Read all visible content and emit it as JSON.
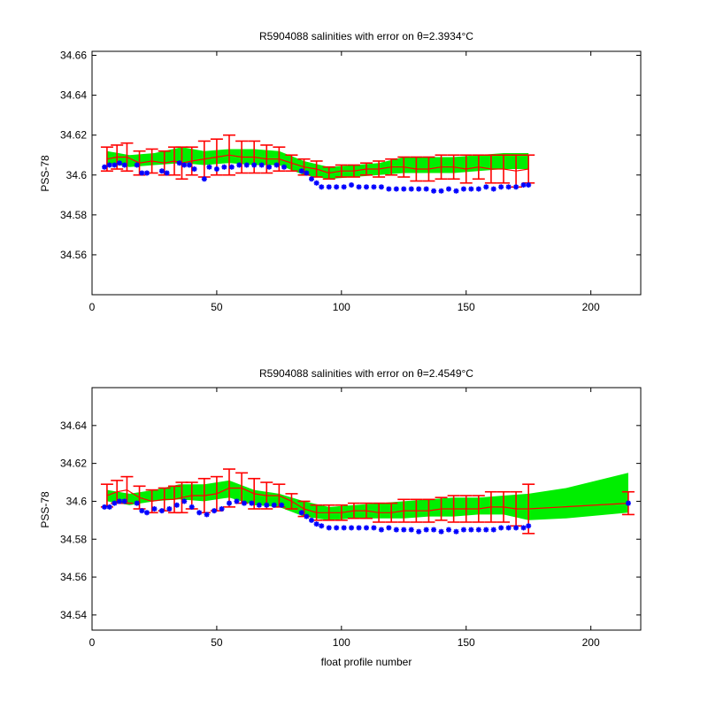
{
  "figure": {
    "background": "#ffffff",
    "colors": {
      "band": "#00ee00",
      "errorbar": "#ff0000",
      "points": "#0000ff",
      "axes": "#000000"
    }
  },
  "chart_data": [
    {
      "type": "scatter",
      "title": "R5904088 salinities with error on θ=2.3934°C",
      "xlabel": "",
      "ylabel": "PSS-78",
      "xlim": [
        0,
        220
      ],
      "ylim": [
        34.54,
        34.662
      ],
      "xticks": [
        0,
        50,
        100,
        150,
        200
      ],
      "xtick_labels": [
        "0",
        "50",
        "100",
        "150",
        "200"
      ],
      "yticks": [
        34.56,
        34.58,
        34.6,
        34.62,
        34.64,
        34.66
      ],
      "ytick_labels": [
        "34.56",
        "34.58",
        "34.6",
        "34.62",
        "34.64",
        "34.66"
      ],
      "grid": false,
      "legend": "none",
      "band": {
        "x": [
          6,
          15,
          25,
          36,
          45,
          55,
          65,
          75,
          85,
          95,
          105,
          115,
          125,
          135,
          145,
          155,
          165,
          175
        ],
        "upper": [
          34.612,
          34.61,
          34.611,
          34.614,
          34.612,
          34.613,
          34.613,
          34.612,
          34.607,
          34.604,
          34.605,
          34.606,
          34.609,
          34.609,
          34.609,
          34.61,
          34.611,
          34.611
        ],
        "lower": [
          34.606,
          34.604,
          34.605,
          34.606,
          34.605,
          34.606,
          34.605,
          34.605,
          34.6,
          34.598,
          34.599,
          34.6,
          34.601,
          34.601,
          34.601,
          34.602,
          34.603,
          34.603
        ]
      },
      "error_bars": {
        "x": [
          6,
          10,
          14,
          19,
          24,
          29,
          33,
          36,
          40,
          45,
          50,
          55,
          60,
          65,
          70,
          75,
          80,
          85,
          90,
          95,
          100,
          105,
          110,
          115,
          120,
          125,
          130,
          135,
          140,
          145,
          150,
          155,
          160,
          165,
          170,
          175
        ],
        "y": [
          34.608,
          34.609,
          34.609,
          34.606,
          34.607,
          34.606,
          34.607,
          34.606,
          34.607,
          34.608,
          34.609,
          34.61,
          34.609,
          34.609,
          34.608,
          34.608,
          34.606,
          34.604,
          34.603,
          34.601,
          34.602,
          34.602,
          34.603,
          34.603,
          34.604,
          34.604,
          34.603,
          34.603,
          34.604,
          34.604,
          34.603,
          34.604,
          34.603,
          34.603,
          34.602,
          34.603
        ],
        "err": [
          0.006,
          0.006,
          0.007,
          0.006,
          0.006,
          0.006,
          0.007,
          0.008,
          0.007,
          0.009,
          0.009,
          0.01,
          0.008,
          0.008,
          0.007,
          0.006,
          0.004,
          0.004,
          0.004,
          0.003,
          0.003,
          0.003,
          0.003,
          0.004,
          0.004,
          0.005,
          0.006,
          0.006,
          0.006,
          0.006,
          0.007,
          0.006,
          0.007,
          0.007,
          0.008,
          0.007
        ]
      },
      "points": {
        "x": [
          5,
          7,
          9,
          11,
          13,
          18,
          20,
          22,
          28,
          30,
          35,
          37,
          39,
          41,
          45,
          47,
          50,
          53,
          56,
          59,
          62,
          65,
          68,
          71,
          74,
          77,
          84,
          86,
          88,
          90,
          92,
          95,
          98,
          101,
          104,
          107,
          110,
          113,
          116,
          119,
          122,
          125,
          128,
          131,
          134,
          137,
          140,
          143,
          146,
          149,
          152,
          155,
          158,
          161,
          164,
          167,
          170,
          173,
          175
        ],
        "y": [
          34.604,
          34.605,
          34.605,
          34.606,
          34.605,
          34.605,
          34.601,
          34.601,
          34.602,
          34.601,
          34.606,
          34.605,
          34.605,
          34.603,
          34.598,
          34.604,
          34.603,
          34.604,
          34.604,
          34.605,
          34.605,
          34.605,
          34.605,
          34.604,
          34.605,
          34.604,
          34.602,
          34.601,
          34.598,
          34.596,
          34.594,
          34.594,
          34.594,
          34.594,
          34.595,
          34.594,
          34.594,
          34.594,
          34.594,
          34.593,
          34.593,
          34.593,
          34.593,
          34.593,
          34.593,
          34.592,
          34.592,
          34.593,
          34.592,
          34.593,
          34.593,
          34.593,
          34.594,
          34.593,
          34.594,
          34.594,
          34.594,
          34.595,
          34.595
        ]
      }
    },
    {
      "type": "scatter",
      "title": "R5904088 salinities with error on θ=2.4549°C",
      "xlabel": "float profile number",
      "ylabel": "PSS-78",
      "xlim": [
        0,
        220
      ],
      "ylim": [
        34.532,
        34.66
      ],
      "xticks": [
        0,
        50,
        100,
        150,
        200
      ],
      "xtick_labels": [
        "0",
        "50",
        "100",
        "150",
        "200"
      ],
      "yticks": [
        34.54,
        34.56,
        34.58,
        34.6,
        34.62,
        34.64
      ],
      "ytick_labels": [
        "34.54",
        "34.56",
        "34.58",
        "34.6",
        "34.62",
        "34.64"
      ],
      "grid": false,
      "legend": "none",
      "band": {
        "x": [
          6,
          15,
          25,
          35,
          45,
          55,
          65,
          75,
          85,
          95,
          105,
          115,
          125,
          135,
          145,
          155,
          165,
          175,
          190,
          215
        ],
        "upper": [
          34.606,
          34.604,
          34.606,
          34.609,
          34.609,
          34.611,
          34.606,
          34.604,
          34.6,
          34.597,
          34.598,
          34.599,
          34.6,
          34.601,
          34.602,
          34.602,
          34.603,
          34.604,
          34.607,
          34.615
        ],
        "lower": [
          34.6,
          34.598,
          34.6,
          34.601,
          34.6,
          34.602,
          34.598,
          34.597,
          34.592,
          34.59,
          34.591,
          34.591,
          34.591,
          34.592,
          34.592,
          34.593,
          34.593,
          34.59,
          34.591,
          34.594
        ]
      },
      "error_bars": {
        "x": [
          6,
          10,
          14,
          19,
          24,
          29,
          33,
          36,
          40,
          45,
          50,
          55,
          60,
          65,
          70,
          75,
          80,
          85,
          90,
          95,
          100,
          105,
          110,
          115,
          120,
          125,
          130,
          135,
          140,
          145,
          150,
          155,
          160,
          165,
          170,
          175,
          215
        ],
        "y": [
          34.603,
          34.605,
          34.606,
          34.602,
          34.6,
          34.601,
          34.601,
          34.602,
          34.603,
          34.603,
          34.604,
          34.607,
          34.607,
          34.604,
          34.603,
          34.603,
          34.6,
          34.596,
          34.594,
          34.594,
          34.594,
          34.595,
          34.595,
          34.594,
          34.594,
          34.595,
          34.595,
          34.595,
          34.596,
          34.596,
          34.596,
          34.596,
          34.597,
          34.597,
          34.596,
          34.596,
          34.599
        ],
        "err": [
          0.006,
          0.006,
          0.007,
          0.006,
          0.006,
          0.006,
          0.007,
          0.008,
          0.007,
          0.009,
          0.009,
          0.01,
          0.008,
          0.008,
          0.007,
          0.006,
          0.004,
          0.004,
          0.004,
          0.004,
          0.004,
          0.004,
          0.004,
          0.005,
          0.005,
          0.006,
          0.006,
          0.006,
          0.006,
          0.007,
          0.007,
          0.007,
          0.008,
          0.008,
          0.009,
          0.013,
          0.006
        ]
      },
      "points": {
        "x": [
          5,
          7,
          9,
          11,
          13,
          18,
          20,
          22,
          25,
          28,
          31,
          34,
          37,
          40,
          43,
          46,
          49,
          52,
          55,
          58,
          61,
          64,
          67,
          70,
          73,
          76,
          84,
          86,
          88,
          90,
          92,
          95,
          98,
          101,
          104,
          107,
          110,
          113,
          116,
          119,
          122,
          125,
          128,
          131,
          134,
          137,
          140,
          143,
          146,
          149,
          152,
          155,
          158,
          161,
          164,
          167,
          170,
          173,
          175,
          215
        ],
        "y": [
          34.597,
          34.597,
          34.599,
          34.6,
          34.6,
          34.599,
          34.595,
          34.594,
          34.596,
          34.595,
          34.596,
          34.598,
          34.6,
          34.597,
          34.594,
          34.593,
          34.595,
          34.596,
          34.599,
          34.6,
          34.599,
          34.599,
          34.598,
          34.598,
          34.598,
          34.598,
          34.594,
          34.592,
          34.59,
          34.588,
          34.587,
          34.586,
          34.586,
          34.586,
          34.586,
          34.586,
          34.586,
          34.586,
          34.585,
          34.586,
          34.585,
          34.585,
          34.585,
          34.584,
          34.585,
          34.585,
          34.584,
          34.585,
          34.584,
          34.585,
          34.585,
          34.585,
          34.585,
          34.585,
          34.586,
          34.586,
          34.586,
          34.586,
          34.587,
          34.599
        ]
      }
    }
  ]
}
